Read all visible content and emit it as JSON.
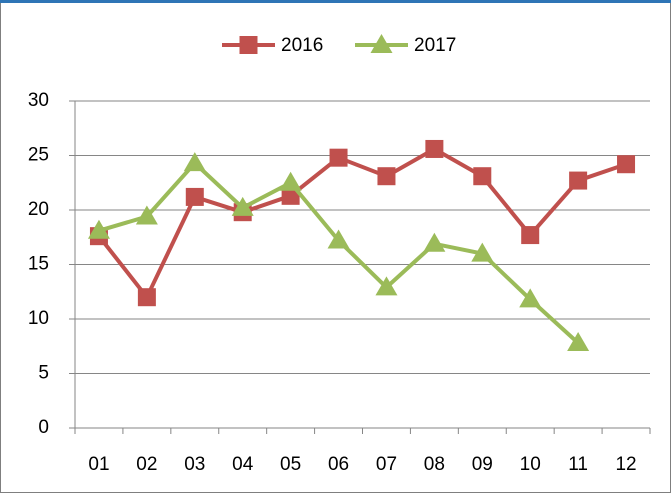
{
  "chart_data": {
    "type": "line",
    "categories": [
      "01",
      "02",
      "03",
      "04",
      "05",
      "06",
      "07",
      "08",
      "09",
      "10",
      "11",
      "12"
    ],
    "series": [
      {
        "name": "2016",
        "color": "#c0504d",
        "marker": "square",
        "values": [
          17.6,
          12.0,
          21.2,
          19.8,
          21.3,
          24.8,
          23.1,
          25.6,
          23.1,
          17.7,
          22.7,
          24.2
        ]
      },
      {
        "name": "2017",
        "color": "#9bbb59",
        "marker": "triangle",
        "values": [
          18.1,
          19.4,
          24.3,
          20.2,
          22.5,
          17.2,
          12.9,
          16.9,
          16.0,
          11.8,
          7.8,
          null
        ]
      }
    ],
    "ylim": [
      0,
      30
    ],
    "yticks": [
      0,
      5,
      10,
      15,
      20,
      25,
      30
    ],
    "grid": true,
    "legend": "top"
  }
}
